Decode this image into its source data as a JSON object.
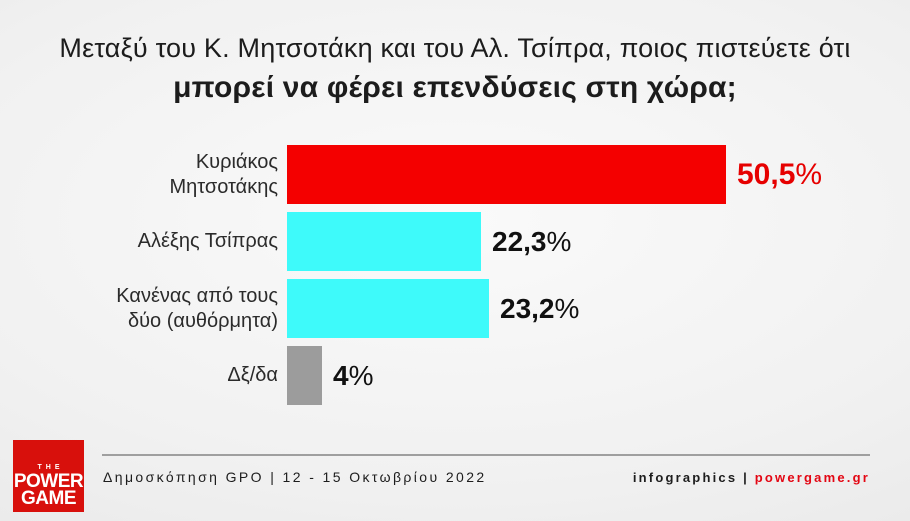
{
  "title": {
    "line1": "Μεταξύ του Κ. Μητσοτάκη και του Αλ. Τσίπρα, ποιος πιστεύετε ότι",
    "line2": "μπορεί να φέρει επενδύσεις στη χώρα;"
  },
  "chart_data": {
    "type": "bar",
    "orientation": "horizontal",
    "title": "Μεταξύ του Κ. Μητσοτάκη και του Αλ. Τσίπρα, ποιος πιστεύετε ότι μπορεί να φέρει επενδύσεις στη χώρα;",
    "categories": [
      "Κυριάκος Μητσοτάκης",
      "Αλέξης Τσίπρας",
      "Κανένας από τους δύο (αυθόρμητα)",
      "Δξ/δα"
    ],
    "values": [
      50.5,
      22.3,
      23.2,
      4
    ],
    "value_labels": [
      "50,5",
      "22,3",
      "23,2",
      "4"
    ],
    "percent_sign": "%",
    "bar_colors": [
      "#f40000",
      "#3efafa",
      "#3efafa",
      "#9c9c9c"
    ],
    "value_colors": [
      "#e60000",
      "#111111",
      "#111111",
      "#111111"
    ],
    "xlim": [
      0,
      50.5
    ],
    "grid": false,
    "legend": false
  },
  "footer": {
    "logo": {
      "the": "THE",
      "power": "POWER",
      "game": "GAME"
    },
    "source": "Δημοσκόπηση GPO | 12 - 15 Οκτωβρίου 2022",
    "credits_prefix": "infographics | ",
    "credits_site": "powergame.gr"
  },
  "colors": {
    "bar_red": "#f40000",
    "bar_cyan": "#3efafa",
    "bar_gray": "#9c9c9c",
    "accent_red": "#e30613",
    "logo_red": "#d8100c",
    "text_dark": "#1c1c1c"
  }
}
